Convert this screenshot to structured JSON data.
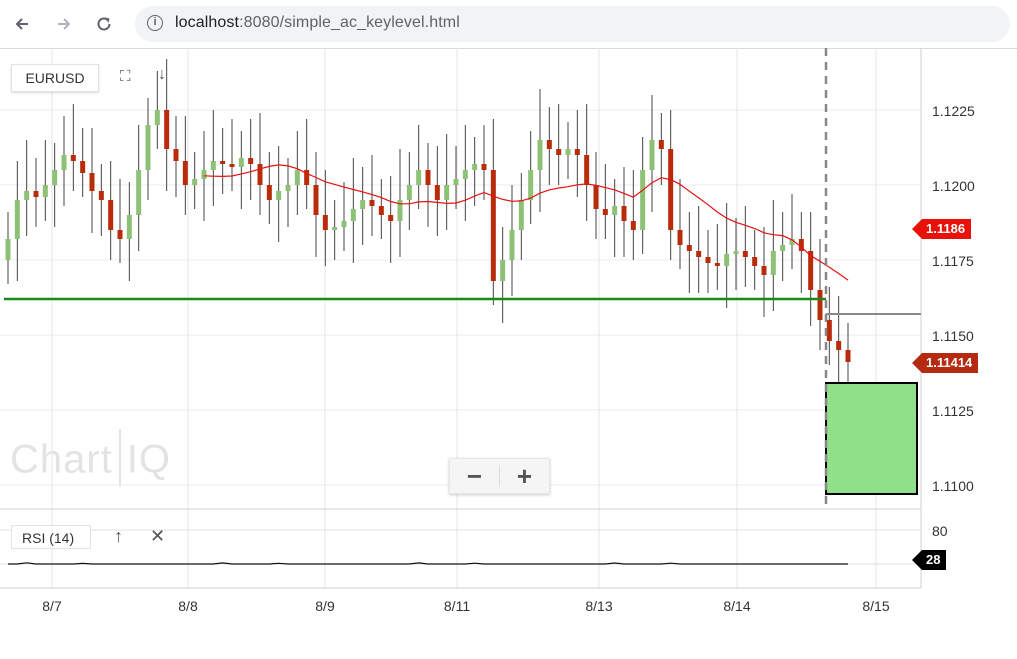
{
  "browser": {
    "url_host": "localhost",
    "url_path": ":8080/simple_ac_keylevel.html",
    "back_icon": "arrow-left-icon",
    "forward_icon": "arrow-right-icon",
    "reload_icon": "reload-icon",
    "info_icon": "info-icon"
  },
  "chart": {
    "symbol": "EURUSD",
    "logo_left": "Chart",
    "logo_right": "IQ",
    "zoom_out": "−",
    "zoom_in": "+",
    "rsi_label": "RSI (14)",
    "key_level_price": 1.1162,
    "vertical_marker_date": "8/14 16:00",
    "colors": {
      "up": "#8cc176",
      "down": "#b82c0c",
      "ma": "#e81010",
      "key_level": "#1a8a1a",
      "target_box": "#90e08a"
    }
  },
  "chart_data": {
    "type": "candlestick",
    "symbol": "EURUSD",
    "y_axis": {
      "ticks": [
        "1.1225",
        "1.1200",
        "1.1175",
        "1.1150",
        "1.1125",
        "1.1100"
      ],
      "ylim": [
        1.1096,
        1.1245
      ]
    },
    "x_axis": {
      "ticks": [
        "8/7",
        "8/8",
        "8/9",
        "8/11",
        "8/13",
        "8/14",
        "8/15"
      ]
    },
    "current_price_labels": {
      "moving_average": "1.1186",
      "last_price": "1.11414"
    },
    "key_level": 1.1162,
    "rsi": {
      "name": "RSI (14)",
      "axis_ticks": [
        "80"
      ],
      "value_label": "28"
    },
    "closes": [
      1.1182,
      1.1195,
      1.1198,
      1.1196,
      1.12,
      1.1205,
      1.121,
      1.1208,
      1.1204,
      1.1198,
      1.1195,
      1.1185,
      1.1182,
      1.119,
      1.1205,
      1.122,
      1.1225,
      1.1212,
      1.1208,
      1.12,
      1.1202,
      1.1205,
      1.1208,
      1.1207,
      1.1206,
      1.1209,
      1.1207,
      1.12,
      1.1195,
      1.1198,
      1.12,
      1.1205,
      1.12,
      1.119,
      1.1185,
      1.1186,
      1.1188,
      1.1192,
      1.1195,
      1.1193,
      1.119,
      1.1188,
      1.1195,
      1.12,
      1.1205,
      1.12,
      1.1195,
      1.12,
      1.1202,
      1.1205,
      1.1207,
      1.1205,
      1.1168,
      1.1175,
      1.1185,
      1.1195,
      1.1205,
      1.1215,
      1.1212,
      1.121,
      1.1212,
      1.121,
      1.12,
      1.1192,
      1.119,
      1.1193,
      1.1188,
      1.1185,
      1.1205,
      1.1215,
      1.1212,
      1.1185,
      1.118,
      1.1178,
      1.1176,
      1.1174,
      1.1173,
      1.1177,
      1.1178,
      1.1176,
      1.1173,
      1.117,
      1.1178,
      1.118,
      1.1182,
      1.1178,
      1.1165,
      1.1155,
      1.1148,
      1.1145,
      1.1141
    ]
  }
}
